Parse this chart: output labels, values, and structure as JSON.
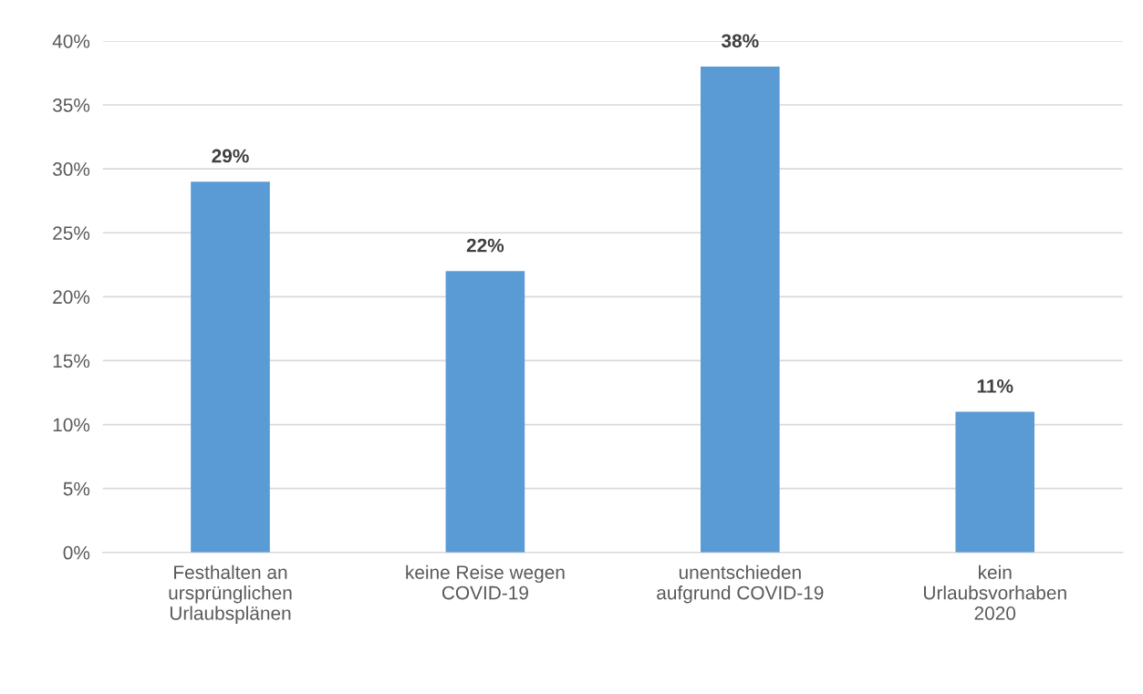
{
  "chart_data": {
    "type": "bar",
    "categories": [
      "Festhalten an\nursprünglichen\nUrlaubsplänen",
      "keine Reise wegen\nCOVID-19",
      "unentschieden\naufgrund COVID-19",
      "kein\nUrlaubsvorhaben\n2020"
    ],
    "values": [
      29,
      22,
      38,
      11
    ],
    "value_labels": [
      "29%",
      "22%",
      "38%",
      "11%"
    ],
    "color": "#5b9bd5",
    "ylim": [
      0,
      40
    ],
    "yticks": [
      {
        "value": 0,
        "label": "0%"
      },
      {
        "value": 5,
        "label": "5%"
      },
      {
        "value": 10,
        "label": "10%"
      },
      {
        "value": 15,
        "label": "15%"
      },
      {
        "value": 20,
        "label": "20%"
      },
      {
        "value": 25,
        "label": "25%"
      },
      {
        "value": 30,
        "label": "30%"
      },
      {
        "value": 35,
        "label": "35%"
      },
      {
        "value": 40,
        "label": "40%"
      }
    ],
    "grid": "y",
    "legend": false
  }
}
